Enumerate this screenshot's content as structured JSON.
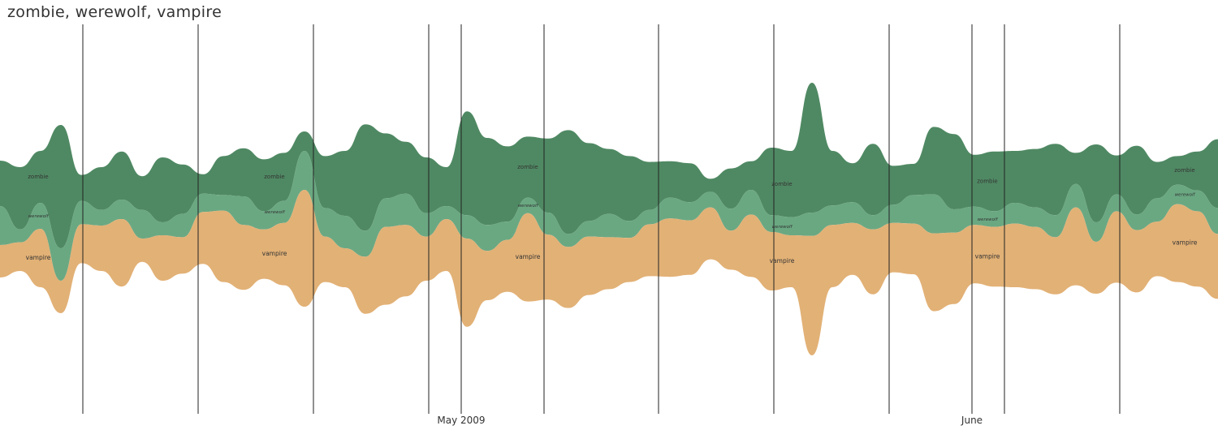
{
  "chart_data": {
    "type": "area",
    "title": "zombie, werewolf, vampire",
    "layout": "streamgraph",
    "x_tick_labels": [
      "May 2009",
      "June"
    ],
    "series": [
      {
        "name": "zombie",
        "color": "#4f8963",
        "values": [
          35,
          48,
          40,
          95,
          20,
          33,
          37,
          26,
          50,
          38,
          15,
          30,
          37,
          40,
          37,
          15,
          40,
          50,
          82,
          50,
          40,
          43,
          30,
          80,
          67,
          58,
          47,
          57,
          80,
          60,
          50,
          50,
          37,
          28,
          30,
          10,
          31,
          22,
          52,
          51,
          100,
          42,
          30,
          55,
          30,
          24,
          52,
          58,
          40,
          46,
          40,
          45,
          55,
          24,
          60,
          30,
          53,
          28,
          22,
          30,
          53
        ]
      },
      {
        "name": "werewolf",
        "color": "#6aa882",
        "values": [
          30,
          10,
          20,
          25,
          18,
          12,
          15,
          22,
          10,
          18,
          14,
          12,
          22,
          14,
          17,
          30,
          22,
          25,
          20,
          22,
          24,
          18,
          10,
          18,
          20,
          14,
          12,
          17,
          10,
          12,
          18,
          13,
          11,
          16,
          14,
          12,
          17,
          19,
          13,
          14,
          18,
          15,
          16,
          11,
          14,
          22,
          30,
          18,
          14,
          12,
          16,
          15,
          17,
          18,
          15,
          13,
          12,
          18,
          15,
          16,
          20
        ]
      },
      {
        "name": "vampire",
        "color": "#e2b176",
        "values": [
          25,
          22,
          45,
          25,
          30,
          35,
          52,
          18,
          35,
          28,
          40,
          55,
          50,
          38,
          48,
          90,
          35,
          30,
          44,
          60,
          55,
          34,
          40,
          68,
          38,
          40,
          68,
          50,
          47,
          45,
          40,
          34,
          40,
          45,
          42,
          40,
          30,
          48,
          45,
          40,
          92,
          48,
          40,
          50,
          38,
          39,
          60,
          55,
          45,
          46,
          49,
          48,
          44,
          60,
          40,
          55,
          48,
          42,
          60,
          58,
          50
        ]
      }
    ]
  }
}
